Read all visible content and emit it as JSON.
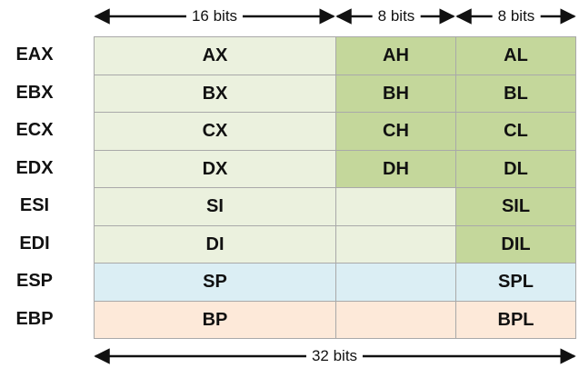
{
  "header": {
    "widths": [
      {
        "label": "16 bits"
      },
      {
        "label": "8 bits"
      },
      {
        "label": "8 bits"
      }
    ]
  },
  "footer": {
    "label": "32 bits"
  },
  "colors": {
    "light_green": "#ebf1de",
    "dark_green": "#c4d79b",
    "light_blue": "#dbeef4",
    "light_peach": "#fde9d9",
    "white": "#ffffff",
    "border": "#a9a9a9"
  },
  "registers": [
    {
      "name": "EAX",
      "word": "AX",
      "high": "AH",
      "low": "AL",
      "word_color": "light_green",
      "high_color": "dark_green",
      "low_color": "dark_green"
    },
    {
      "name": "EBX",
      "word": "BX",
      "high": "BH",
      "low": "BL",
      "word_color": "light_green",
      "high_color": "dark_green",
      "low_color": "dark_green"
    },
    {
      "name": "ECX",
      "word": "CX",
      "high": "CH",
      "low": "CL",
      "word_color": "light_green",
      "high_color": "dark_green",
      "low_color": "dark_green"
    },
    {
      "name": "EDX",
      "word": "DX",
      "high": "DH",
      "low": "DL",
      "word_color": "light_green",
      "high_color": "dark_green",
      "low_color": "dark_green"
    },
    {
      "name": "ESI",
      "word": "SI",
      "high": "",
      "low": "SIL",
      "word_color": "light_green",
      "high_color": "light_green",
      "low_color": "dark_green"
    },
    {
      "name": "EDI",
      "word": "DI",
      "high": "",
      "low": "DIL",
      "word_color": "light_green",
      "high_color": "light_green",
      "low_color": "dark_green"
    },
    {
      "name": "ESP",
      "word": "SP",
      "high": "",
      "low": "SPL",
      "word_color": "light_blue",
      "high_color": "light_blue",
      "low_color": "light_blue"
    },
    {
      "name": "EBP",
      "word": "BP",
      "high": "",
      "low": "BPL",
      "word_color": "light_peach",
      "high_color": "light_peach",
      "low_color": "light_peach"
    }
  ]
}
